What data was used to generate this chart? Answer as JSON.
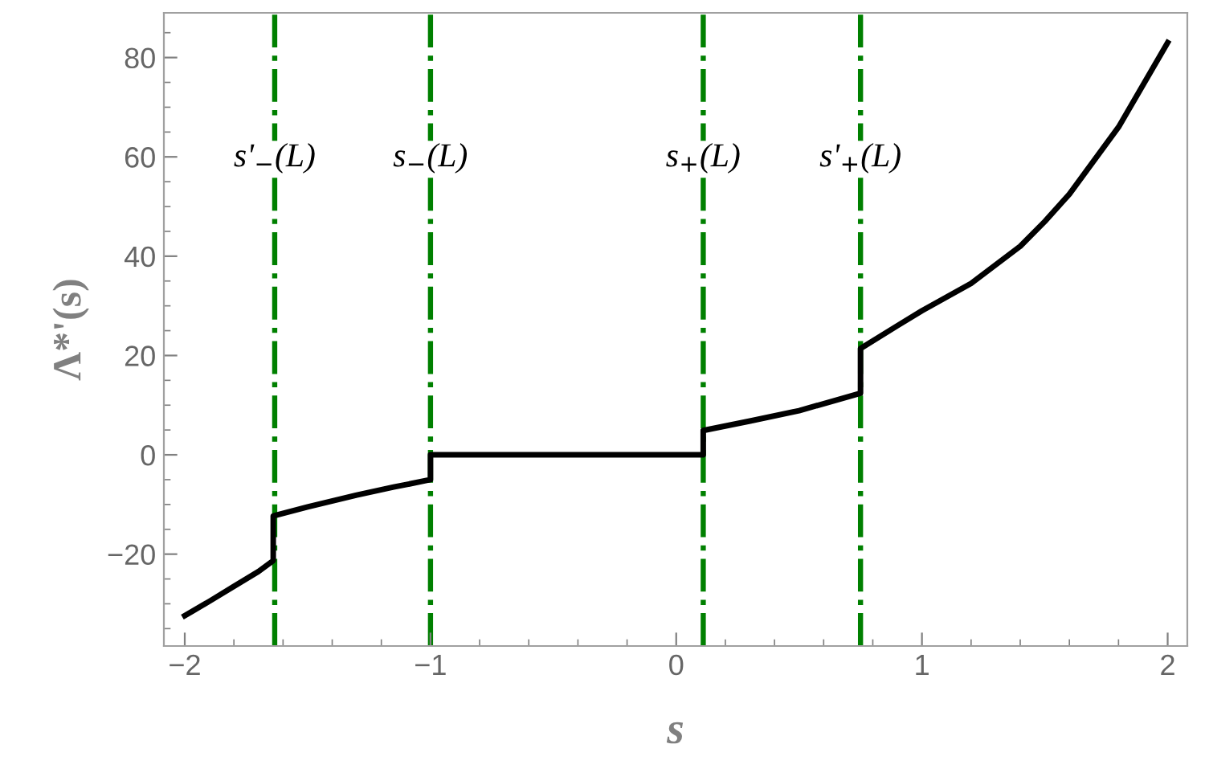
{
  "chart_data": {
    "type": "line",
    "xlabel": "s",
    "ylabel": "Λ*'(s)",
    "x": [
      -2,
      -1.9,
      -1.8,
      -1.7,
      -1.64,
      -1.64,
      -1.5,
      -1.3,
      -1.15,
      -1.0,
      -1.0,
      -0.5,
      0.11,
      0.11,
      0.3,
      0.5,
      0.75,
      0.75,
      0.9,
      1.0,
      1.2,
      1.4,
      1.5,
      1.6,
      1.8,
      2.0
    ],
    "series": [
      {
        "color": "#000000",
        "values": [
          -32.4,
          -29.5,
          -26.5,
          -23.5,
          -21.3,
          -12.3,
          -10.5,
          -8.1,
          -6.5,
          -5.0,
          0,
          0,
          0,
          4.9,
          6.8,
          8.9,
          12.4,
          21.4,
          26,
          29,
          34.5,
          42,
          47,
          52.5,
          66,
          83
        ]
      }
    ],
    "ref_lines": [
      {
        "axis": "x",
        "value": -1.634,
        "label": "s'$_{−}$(L)",
        "color": "#008000",
        "line_style": "dashdot"
      },
      {
        "axis": "x",
        "value": -1.0,
        "label": "s$_{−}$(L)",
        "color": "#008000",
        "line_style": "dashdot"
      },
      {
        "axis": "x",
        "value": 0.11,
        "label": "s$_{+}$(L)",
        "color": "#008000",
        "line_style": "dashdot"
      },
      {
        "axis": "x",
        "value": 0.75,
        "label": "s'$_{+}$(L)",
        "color": "#008000",
        "line_style": "dashdot"
      }
    ],
    "xlim": [
      -2.085,
      2.08
    ],
    "ylim": [
      -38.5,
      89
    ],
    "xticks": [
      {
        "value": -2,
        "label": "−2"
      },
      {
        "value": -1,
        "label": "−1"
      },
      0,
      1,
      2
    ],
    "yticks": [
      {
        "value": -20,
        "label": "−20"
      },
      0,
      20,
      40,
      60,
      80
    ],
    "grid": false,
    "legend": false,
    "marker": "none",
    "line_style": "solid"
  }
}
